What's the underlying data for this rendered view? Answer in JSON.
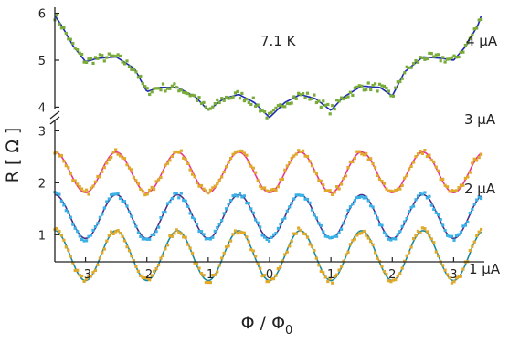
{
  "chart_data": {
    "type": "scatter",
    "title": "",
    "annotation": "7.1 K",
    "xlabel": "Φ / Φ",
    "xlabel_subscript": "0",
    "ylabel": "R [ Ω ]",
    "xlim": [
      -3.5,
      3.5
    ],
    "x_ticks": [
      "-3",
      "-2",
      "-1",
      "0",
      "1",
      "2",
      "3"
    ],
    "lower_panel": {
      "ylim": [
        0.55,
        3.2
      ],
      "y_ticks": [
        "1",
        "2",
        "3"
      ]
    },
    "upper_panel": {
      "ylim": [
        3.95,
        6.05
      ],
      "y_ticks": [
        "4",
        "5",
        "6"
      ]
    },
    "axis_break": true,
    "grid": false,
    "legend": "none",
    "series": [
      {
        "name": "4 μA",
        "data_color": "#79ab38",
        "fit_color": "#1b2ab0",
        "panel": "upper",
        "fit_points": [
          [
            -3.5,
            5.95
          ],
          [
            -3.4,
            5.76
          ],
          [
            -3.2,
            5.3
          ],
          [
            -3.0,
            4.97
          ],
          [
            -2.8,
            5.04
          ],
          [
            -2.5,
            5.07
          ],
          [
            -2.2,
            4.82
          ],
          [
            -2.0,
            4.33
          ],
          [
            -1.8,
            4.42
          ],
          [
            -1.5,
            4.42
          ],
          [
            -1.2,
            4.21
          ],
          [
            -1.0,
            3.93
          ],
          [
            -0.75,
            4.18
          ],
          [
            -0.5,
            4.27
          ],
          [
            -0.25,
            4.1
          ],
          [
            0.0,
            3.78
          ],
          [
            0.25,
            4.1
          ],
          [
            0.5,
            4.27
          ],
          [
            0.75,
            4.18
          ],
          [
            1.0,
            3.93
          ],
          [
            1.2,
            4.21
          ],
          [
            1.5,
            4.45
          ],
          [
            1.8,
            4.42
          ],
          [
            2.0,
            4.24
          ],
          [
            2.2,
            4.75
          ],
          [
            2.5,
            5.07
          ],
          [
            2.8,
            5.04
          ],
          [
            3.0,
            5.0
          ],
          [
            3.2,
            5.3
          ],
          [
            3.4,
            5.76
          ],
          [
            3.45,
            5.95
          ]
        ]
      },
      {
        "name": "3 μA",
        "data_color": "#e0a92a",
        "fit_color": "#e8338a",
        "panel": "lower",
        "baseline": 2.2,
        "amplitude": 0.39
      },
      {
        "name": "2 μA",
        "data_color": "#3ab1e6",
        "fit_color": "#4a3088",
        "panel": "lower",
        "baseline": 1.35,
        "amplitude": 0.42
      },
      {
        "name": "1 μA",
        "data_color": "#e0a92a",
        "fit_color": "#1b8a9c",
        "panel": "lower",
        "baseline": 0.6,
        "amplitude": 0.48
      }
    ]
  }
}
